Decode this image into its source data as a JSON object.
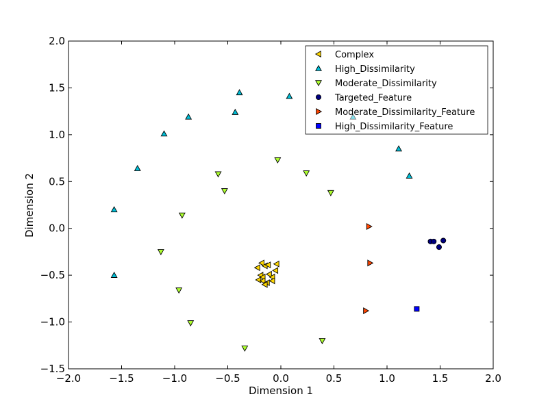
{
  "chart_data": {
    "type": "scatter",
    "title": "",
    "xlabel": "Dimension 1",
    "ylabel": "Dimension 2",
    "xlim": [
      -2.0,
      2.0
    ],
    "ylim": [
      -1.5,
      2.0
    ],
    "xticks": [
      -2.0,
      -1.5,
      -1.0,
      -0.5,
      0.0,
      0.5,
      1.0,
      1.5,
      2.0
    ],
    "yticks": [
      -1.5,
      -1.0,
      -0.5,
      0.0,
      0.5,
      1.0,
      1.5,
      2.0
    ],
    "xtick_labels": [
      "−2.0",
      "−1.5",
      "−1.0",
      "−0.5",
      "0.0",
      "0.5",
      "1.0",
      "1.5",
      "2.0"
    ],
    "ytick_labels": [
      "−1.5",
      "−1.0",
      "−0.5",
      "0.0",
      "0.5",
      "1.0",
      "1.5",
      "2.0"
    ],
    "grid": false,
    "legend_position": "top-right",
    "series": [
      {
        "name": "Complex",
        "marker": "triangle-left",
        "color": "#ffd700",
        "points": [
          [
            -0.22,
            -0.42
          ],
          [
            -0.18,
            -0.37
          ],
          [
            -0.15,
            -0.4
          ],
          [
            -0.12,
            -0.39
          ],
          [
            -0.04,
            -0.38
          ],
          [
            -0.19,
            -0.5
          ],
          [
            -0.17,
            -0.52
          ],
          [
            -0.11,
            -0.49
          ],
          [
            -0.08,
            -0.52
          ],
          [
            -0.05,
            -0.45
          ],
          [
            -0.21,
            -0.55
          ],
          [
            -0.17,
            -0.56
          ],
          [
            -0.13,
            -0.58
          ],
          [
            -0.08,
            -0.56
          ],
          [
            -0.15,
            -0.6
          ]
        ]
      },
      {
        "name": "High_Dissimilarity",
        "marker": "triangle-up",
        "color": "#00bfd8",
        "points": [
          [
            -1.57,
            0.2
          ],
          [
            -1.57,
            -0.5
          ],
          [
            -1.35,
            0.64
          ],
          [
            -1.1,
            1.01
          ],
          [
            -0.87,
            1.19
          ],
          [
            -0.43,
            1.24
          ],
          [
            -0.39,
            1.45
          ],
          [
            0.08,
            1.41
          ],
          [
            0.68,
            1.19
          ],
          [
            1.11,
            0.85
          ],
          [
            1.21,
            0.56
          ]
        ]
      },
      {
        "name": "Moderate_Dissimilarity",
        "marker": "triangle-down",
        "color": "#adff2f",
        "points": [
          [
            -0.93,
            0.14
          ],
          [
            -1.13,
            -0.25
          ],
          [
            -0.96,
            -0.66
          ],
          [
            -0.85,
            -1.01
          ],
          [
            -0.59,
            0.58
          ],
          [
            -0.53,
            0.4
          ],
          [
            -0.34,
            -1.28
          ],
          [
            -0.03,
            0.73
          ],
          [
            0.24,
            0.59
          ],
          [
            0.47,
            0.38
          ],
          [
            0.39,
            -1.2
          ]
        ]
      },
      {
        "name": "Targeted_Feature",
        "marker": "circle",
        "color": "#000080",
        "points": [
          [
            1.41,
            -0.14
          ],
          [
            1.44,
            -0.14
          ],
          [
            1.49,
            -0.2
          ],
          [
            1.53,
            -0.13
          ]
        ]
      },
      {
        "name": "Moderate_Dissimilarity_Feature",
        "marker": "triangle-right",
        "color": "#ff4500",
        "points": [
          [
            0.83,
            0.02
          ],
          [
            0.84,
            -0.37
          ],
          [
            0.8,
            -0.88
          ]
        ]
      },
      {
        "name": "High_Dissimilarity_Feature",
        "marker": "square",
        "color": "#0000ff",
        "points": [
          [
            1.28,
            -0.86
          ]
        ]
      }
    ]
  }
}
